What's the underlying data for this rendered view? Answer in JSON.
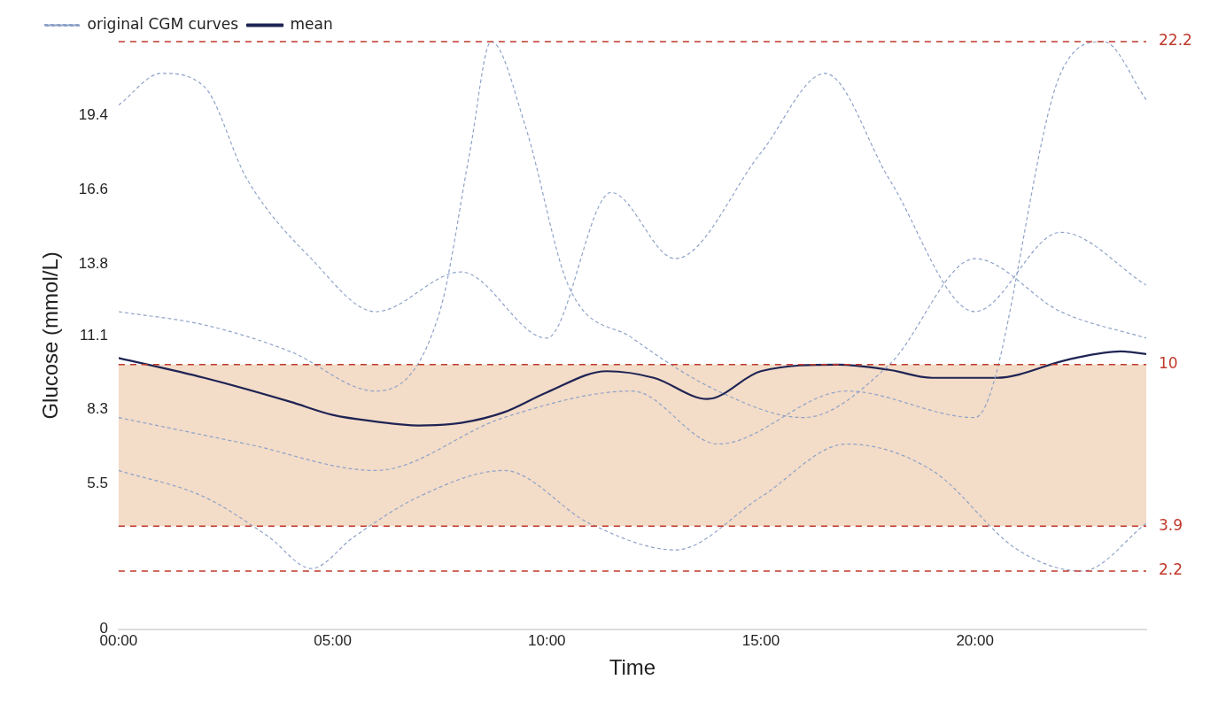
{
  "chart_data": {
    "type": "line",
    "xlabel": "Time",
    "ylabel": "Glucose (mmol/L)",
    "xlim": [
      0,
      24
    ],
    "xticks": [
      {
        "value": 0,
        "label": "00:00"
      },
      {
        "value": 5,
        "label": "05:00"
      },
      {
        "value": 10,
        "label": "10:00"
      },
      {
        "value": 15,
        "label": "15:00"
      },
      {
        "value": 20,
        "label": "20:00"
      }
    ],
    "ylim": [
      0,
      22.2
    ],
    "yticks": [
      0,
      5.5,
      8.3,
      11.1,
      13.8,
      16.6,
      19.4
    ],
    "grid": false,
    "legend": "top left",
    "marker": "none",
    "series": [
      {
        "name": "mean",
        "color": "#1f2454",
        "line_style": "solid",
        "x": [
          0,
          2,
          4,
          5,
          6,
          7,
          8,
          9,
          10,
          11.4,
          12.5,
          13.75,
          15,
          16.8,
          18,
          19,
          20.5,
          22.2,
          23.4,
          24
        ],
        "values": [
          10.25,
          9.5,
          8.6,
          8.1,
          7.85,
          7.7,
          7.8,
          8.2,
          8.95,
          9.75,
          9.5,
          8.7,
          9.75,
          10.0,
          9.8,
          9.5,
          9.5,
          10.2,
          10.5,
          10.4
        ]
      },
      {
        "name": "original CGM curves",
        "color": "#8fa3c8",
        "line_style": "dashed",
        "x": [
          0,
          2,
          4,
          6,
          7.5,
          8.2,
          8.7,
          9.5,
          10.5,
          12,
          14,
          16,
          18,
          20,
          22,
          24
        ],
        "values": [
          12,
          11.5,
          10.5,
          9,
          12,
          18,
          22.2,
          19,
          13,
          11,
          9,
          8,
          10,
          14,
          12,
          11
        ]
      },
      {
        "color": "#8fa3c8",
        "line_style": "dashed",
        "x": [
          0,
          1,
          2,
          3,
          4.5,
          6,
          8,
          10,
          11.5,
          13,
          15,
          16.5,
          18,
          20,
          22,
          24
        ],
        "values": [
          19.8,
          21,
          20.5,
          17,
          14,
          12,
          13.5,
          11,
          16.5,
          14,
          18,
          21,
          17,
          12,
          15,
          13
        ]
      },
      {
        "color": "#8fa3c8",
        "line_style": "dashed",
        "x": [
          0,
          2,
          3.5,
          4.5,
          5.5,
          7,
          9,
          11,
          13,
          15,
          17,
          19,
          21,
          22.5,
          24
        ],
        "values": [
          6,
          5,
          3.5,
          2.3,
          3.5,
          5,
          6,
          4,
          3,
          5,
          7,
          6,
          3,
          2.2,
          4
        ]
      },
      {
        "color": "#8fa3c8",
        "line_style": "dashed",
        "x": [
          0,
          3,
          6,
          9,
          12,
          14,
          17,
          20,
          22,
          23,
          24
        ],
        "values": [
          8,
          7,
          6,
          8,
          9,
          7,
          9,
          8,
          21,
          22.2,
          20
        ]
      }
    ],
    "bands": [
      {
        "axis": "y",
        "from": 3.9,
        "to": 10,
        "color": "#f3dcc8"
      }
    ],
    "ref_lines": [
      {
        "axis": "y",
        "value": 22.2,
        "label": "22.2",
        "color": "#c0392b",
        "line_style": "dashed"
      },
      {
        "axis": "y",
        "value": 10,
        "label": "10",
        "color": "#c0392b",
        "line_style": "dashed"
      },
      {
        "axis": "y",
        "value": 3.9,
        "label": "3.9",
        "color": "#c0392b",
        "line_style": "dashed"
      },
      {
        "axis": "y",
        "value": 2.2,
        "label": "2.2",
        "color": "#c0392b",
        "line_style": "dashed"
      }
    ]
  }
}
